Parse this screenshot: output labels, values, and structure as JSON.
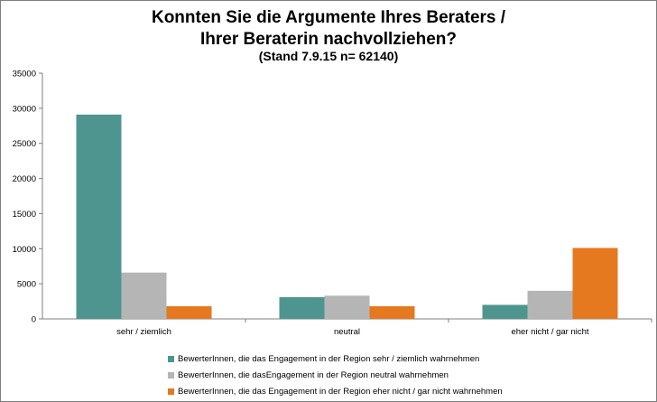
{
  "chart_data": {
    "type": "bar",
    "title": "Konnten Sie die Argumente Ihres Beraters /",
    "title_line2": "Ihrer Beraterin nachvollziehen?",
    "subtitle": "(Stand 7.9.15 n= 62140)",
    "categories": [
      "sehr / ziemlich",
      "neutral",
      "eher nicht / gar nicht"
    ],
    "series": [
      {
        "name": "BewerterInnen, die das Engagement in der Region sehr / ziemlich wahrnehmen",
        "color": "#4e9590",
        "values": [
          29100,
          3100,
          2000
        ]
      },
      {
        "name": "BewerterInnen, die dasEngagement in der Region neutral wahrnehmen",
        "color": "#b5b5b5",
        "values": [
          6600,
          3300,
          4000
        ]
      },
      {
        "name": "BewerterInnen, die das Engagement in der Region eher nicht / gar nicht wahrnehmen",
        "color": "#e4791f",
        "values": [
          1800,
          1800,
          10100
        ]
      }
    ],
    "yticks": [
      "0",
      "5000",
      "10000",
      "15000",
      "20000",
      "25000",
      "30000",
      "35000"
    ],
    "ylim": [
      0,
      35000
    ],
    "grid": false,
    "legend_position": "bottom"
  }
}
